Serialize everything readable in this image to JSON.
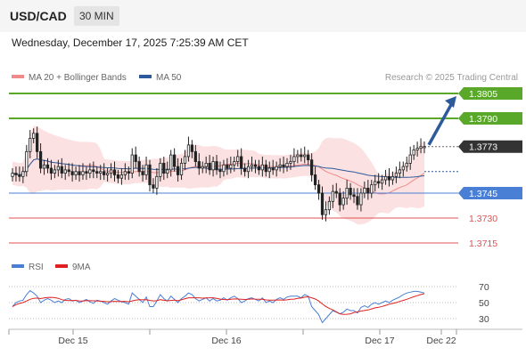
{
  "header": {
    "symbol": "USD/CAD",
    "timeframe": "30 MIN"
  },
  "datetime": "Wednesday, December 17, 2025 7:25:39 AM CET",
  "legend": [
    {
      "label": "MA 20 + Bollinger Bands",
      "color": "#f08a8a"
    },
    {
      "label": "MA 50",
      "color": "#2d5a9a"
    }
  ],
  "credit": "Research © 2025 Trading Central",
  "chart_data": {
    "type": "candlestick",
    "x_ticks": [
      "Dec 15",
      "Dec 16",
      "Dec 17",
      "Dec 22"
    ],
    "y_range": [
      1.3705,
      1.3815
    ],
    "levels": [
      {
        "value": 1.3805,
        "label": "1.3805",
        "kind": "target",
        "color": "#5aa82a"
      },
      {
        "value": 1.379,
        "label": "1.3790",
        "kind": "resistance",
        "color": "#5aa82a"
      },
      {
        "value": 1.3773,
        "label": "1.3773",
        "kind": "last",
        "color": "#333333"
      },
      {
        "value": 1.3745,
        "label": "1.3745",
        "kind": "pivot",
        "color": "#4a7fd6"
      },
      {
        "value": 1.373,
        "label": "1.3730",
        "kind": "support",
        "color": "#e05050"
      },
      {
        "value": 1.3715,
        "label": "1.3715",
        "kind": "support",
        "color": "#e05050"
      }
    ],
    "closes": [
      1.3757,
      1.3756,
      1.3755,
      1.3758,
      1.377,
      1.3778,
      1.3781,
      1.377,
      1.376,
      1.3762,
      1.376,
      1.3757,
      1.3759,
      1.3761,
      1.3757,
      1.3759,
      1.3758,
      1.3756,
      1.3758,
      1.3756,
      1.3758,
      1.3757,
      1.3759,
      1.3758,
      1.3757,
      1.3758,
      1.3756,
      1.3757,
      1.3759,
      1.3756,
      1.3754,
      1.3756,
      1.3758,
      1.3757,
      1.3768,
      1.3764,
      1.3758,
      1.3756,
      1.3762,
      1.375,
      1.3748,
      1.3755,
      1.3763,
      1.3757,
      1.3759,
      1.3768,
      1.3761,
      1.3756,
      1.3763,
      1.3767,
      1.3774,
      1.377,
      1.3764,
      1.376,
      1.3761,
      1.3763,
      1.3759,
      1.3764,
      1.3759,
      1.3758,
      1.3762,
      1.376,
      1.3762,
      1.3764,
      1.3767,
      1.376,
      1.3758,
      1.3761,
      1.3762,
      1.3761,
      1.3759,
      1.3762,
      1.3758,
      1.376,
      1.3759,
      1.3761,
      1.3762,
      1.3761,
      1.3763,
      1.3764,
      1.3767,
      1.3768,
      1.3767,
      1.3768,
      1.3765,
      1.3756,
      1.375,
      1.3745,
      1.3732,
      1.3735,
      1.374,
      1.3746,
      1.3745,
      1.3738,
      1.3742,
      1.3748,
      1.3744,
      1.3743,
      1.3738,
      1.3745,
      1.3748,
      1.3745,
      1.375,
      1.3752,
      1.3751,
      1.3753,
      1.3755,
      1.3753,
      1.3755,
      1.3757,
      1.3759,
      1.3761,
      1.3763,
      1.3768,
      1.3771,
      1.3772,
      1.3773,
      1.3773
    ],
    "ma50_start": 1.3758,
    "ma50_end": 1.3756,
    "target_arrow": {
      "from": 1.3773,
      "to": 1.3805
    },
    "rsi": {
      "levels": [
        70,
        50,
        30
      ],
      "range": [
        20,
        80
      ],
      "legend": [
        {
          "label": "RSI",
          "color": "#4a7fd6"
        },
        {
          "label": "9MA",
          "color": "#e02020"
        }
      ],
      "rsi_values": [
        45,
        50,
        52,
        53,
        60,
        65,
        62,
        58,
        50,
        53,
        55,
        53,
        50,
        52,
        50,
        54,
        55,
        52,
        53,
        50,
        52,
        54,
        51,
        49,
        53,
        52,
        50,
        48,
        52,
        55,
        53,
        51,
        50,
        48,
        62,
        58,
        54,
        50,
        57,
        45,
        45,
        52,
        60,
        55,
        52,
        58,
        54,
        50,
        55,
        58,
        62,
        60,
        55,
        52,
        54,
        56,
        52,
        55,
        52,
        53,
        56,
        53,
        56,
        58,
        55,
        50,
        52,
        55,
        56,
        54,
        52,
        56,
        50,
        52,
        50,
        54,
        56,
        54,
        57,
        58,
        58,
        58,
        56,
        60,
        58,
        45,
        40,
        35,
        25,
        30,
        35,
        40,
        38,
        36,
        38,
        42,
        40,
        40,
        37,
        44,
        46,
        44,
        48,
        50,
        48,
        50,
        52,
        50,
        53,
        55,
        57,
        60,
        62,
        63,
        64,
        64,
        63,
        62
      ]
    }
  }
}
